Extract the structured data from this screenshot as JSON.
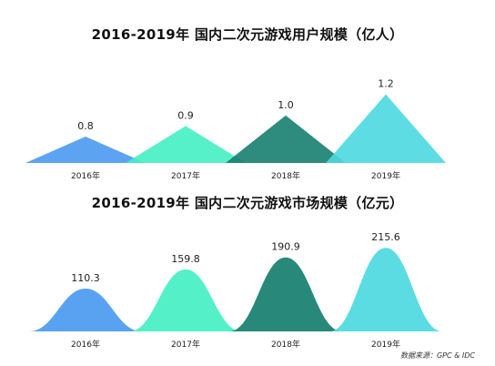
{
  "chart_data": [
    {
      "type": "area",
      "title": "2016-2019年  国内二次元游戏用户规模（亿人）",
      "categories": [
        "2016年",
        "2017年",
        "2018年",
        "2019年"
      ],
      "values": [
        0.8,
        0.9,
        1.0,
        1.2
      ],
      "value_labels": [
        "0.8",
        "0.9",
        "1.0",
        "1.2"
      ],
      "shape": "triangle",
      "colors": [
        "#4a9af0",
        "#45f0c3",
        "#167f6f",
        "#4dd8e0"
      ]
    },
    {
      "type": "area",
      "title": "2016-2019年  国内二次元游戏市场规模（亿元）",
      "categories": [
        "2016年",
        "2017年",
        "2018年",
        "2019年"
      ],
      "values": [
        110.3,
        159.8,
        190.9,
        215.6
      ],
      "value_labels": [
        "110.3",
        "159.8",
        "190.9",
        "215.6"
      ],
      "shape": "bell",
      "colors": [
        "#4a9af0",
        "#45f0c3",
        "#167f6f",
        "#4dd8e0"
      ]
    }
  ],
  "source": "数据来源：GPC & IDC"
}
